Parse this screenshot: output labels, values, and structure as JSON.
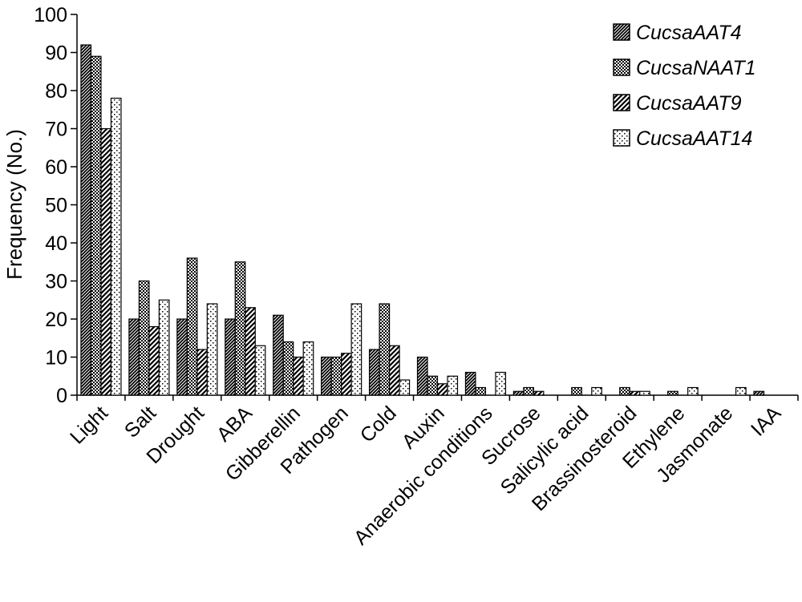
{
  "chart_data": {
    "type": "bar",
    "title": "",
    "xlabel": "",
    "ylabel": "Frequency (No.)",
    "ylim": [
      0,
      100
    ],
    "yticks": [
      0,
      10,
      20,
      30,
      40,
      50,
      60,
      70,
      80,
      90,
      100
    ],
    "grid": false,
    "legend_position": "top-right",
    "categories": [
      "Light",
      "Salt",
      "Drought",
      "ABA",
      "Gibberellin",
      "Pathogen",
      "Cold",
      "Auxin",
      "Anaerobic conditions",
      "Sucrose",
      "Salicylic acid",
      "Brassinosteroid",
      "Ethylene",
      "Jasmonate",
      "IAA"
    ],
    "series": [
      {
        "name": "CucsaAAT4",
        "pattern": "diagonal-dense",
        "values": [
          92,
          20,
          20,
          20,
          21,
          10,
          12,
          10,
          6,
          1,
          0,
          0,
          0,
          0,
          1
        ]
      },
      {
        "name": "CucsaNAAT1",
        "pattern": "checker",
        "values": [
          89,
          30,
          36,
          35,
          14,
          10,
          24,
          5,
          2,
          2,
          2,
          2,
          1,
          0,
          0
        ]
      },
      {
        "name": "CucsaAAT9",
        "pattern": "diagonal-wide",
        "values": [
          70,
          18,
          12,
          23,
          10,
          11,
          13,
          3,
          0,
          1,
          0,
          1,
          0,
          0,
          0
        ]
      },
      {
        "name": "CucsaAAT14",
        "pattern": "dots",
        "values": [
          78,
          25,
          24,
          13,
          14,
          24,
          4,
          5,
          6,
          0,
          2,
          1,
          2,
          2,
          0
        ]
      }
    ]
  }
}
